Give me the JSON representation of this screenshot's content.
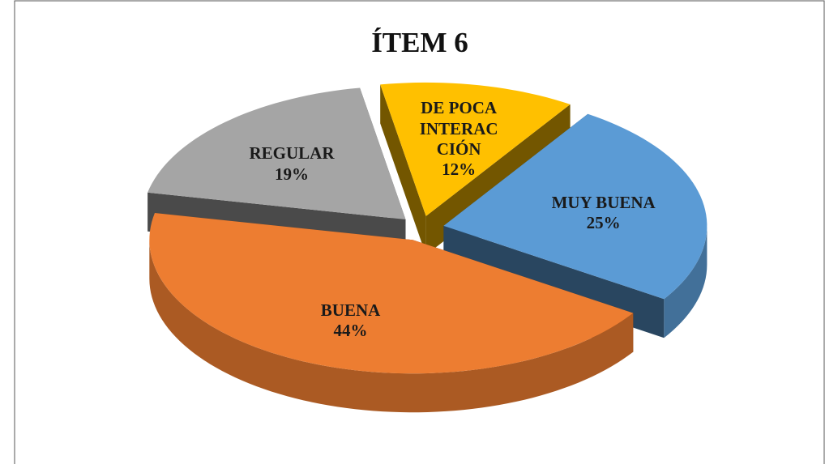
{
  "chart_data": {
    "type": "pie",
    "title": "ÍTEM 6",
    "categories": [
      "MUY BUENA",
      "BUENA",
      "REGULAR",
      "DE POCA INTERACCIÓN"
    ],
    "values": [
      25,
      44,
      19,
      12
    ],
    "value_labels": [
      "25%",
      "44%",
      "19%",
      "12%"
    ],
    "colors": [
      "#5b9bd5",
      "#ed7d31",
      "#a5a5a5",
      "#ffc000"
    ]
  }
}
